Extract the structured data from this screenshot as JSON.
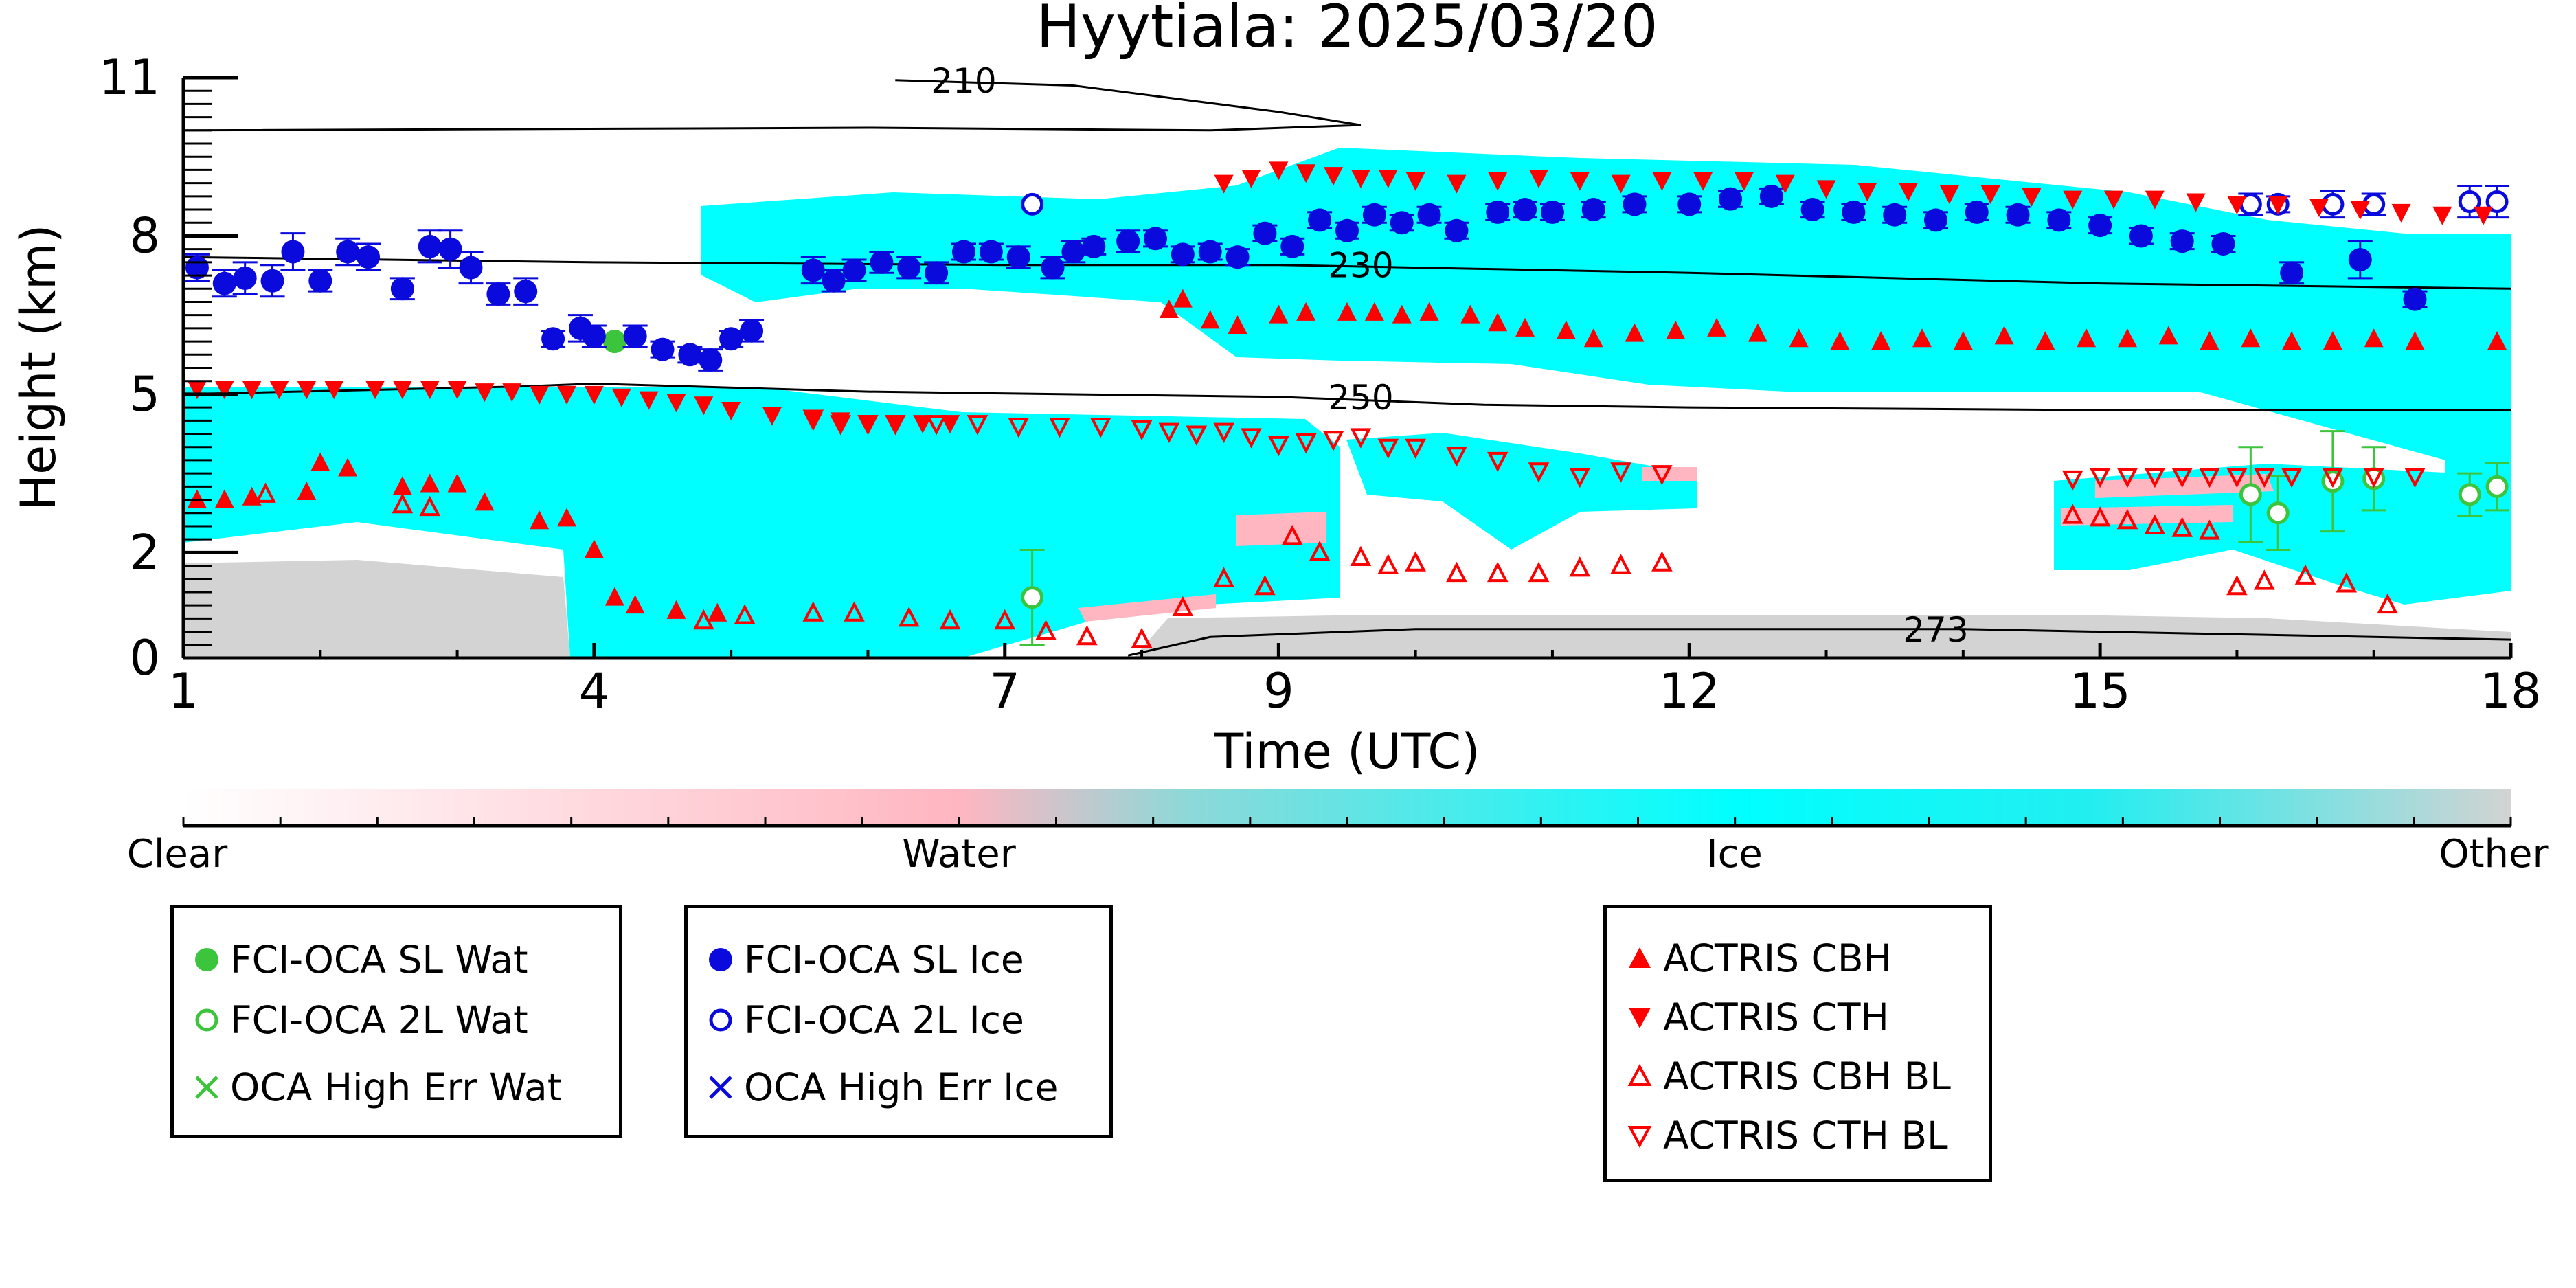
{
  "chart_data": {
    "type": "scatter",
    "title": "Hyytiala: 2025/03/20",
    "xlabel": "Time (UTC)",
    "ylabel": "Height (km)",
    "xlim": [
      1,
      18
    ],
    "ylim": [
      0,
      11
    ],
    "xticks": [
      "1",
      "4",
      "7",
      "9",
      "12",
      "15",
      "18"
    ],
    "xtick_values": [
      1,
      4,
      7,
      9,
      12,
      15,
      18
    ],
    "yticks": [
      "0",
      "2",
      "5",
      "8",
      "11"
    ],
    "ytick_values": [
      0,
      2,
      5,
      8,
      11
    ],
    "grid": false,
    "background_classification": {
      "colorbar_labels": [
        "Clear",
        "Water",
        "Ice",
        "Other"
      ],
      "colors": {
        "clear": "#ffffff",
        "water": "#ffb6c1",
        "ice": "#00ffff",
        "other": "#d3d3d3"
      }
    },
    "contours": [
      {
        "label": "210",
        "points": [
          [
            1.0,
            10.0
          ],
          [
            6.0,
            10.05
          ],
          [
            8.5,
            10.0
          ],
          [
            9.6,
            10.1
          ],
          [
            9.0,
            10.35
          ],
          [
            7.5,
            10.85
          ],
          [
            6.2,
            10.95
          ]
        ]
      },
      {
        "label": "230",
        "points": [
          [
            1.0,
            7.6
          ],
          [
            4.0,
            7.5
          ],
          [
            7.0,
            7.45
          ],
          [
            9.0,
            7.45
          ],
          [
            12.0,
            7.3
          ],
          [
            15.0,
            7.1
          ],
          [
            18.0,
            7.0
          ]
        ]
      },
      {
        "label": "250",
        "points": [
          [
            1.0,
            5.0
          ],
          [
            3.5,
            5.15
          ],
          [
            4.0,
            5.2
          ],
          [
            6.0,
            5.05
          ],
          [
            9.0,
            4.95
          ],
          [
            10.5,
            4.8
          ],
          [
            12.0,
            4.75
          ],
          [
            15.0,
            4.7
          ],
          [
            18.0,
            4.7
          ]
        ]
      },
      {
        "label": "273",
        "points": [
          [
            7.9,
            0.05
          ],
          [
            8.5,
            0.4
          ],
          [
            10.0,
            0.55
          ],
          [
            12.0,
            0.55
          ],
          [
            14.0,
            0.55
          ],
          [
            16.0,
            0.45
          ],
          [
            18.0,
            0.35
          ]
        ]
      }
    ],
    "series": [
      {
        "name": "FCI-OCA SL Wat",
        "color": "#3cc43c",
        "marker": "filled-circle",
        "x": [
          4.15
        ],
        "y": [
          6.0
        ]
      },
      {
        "name": "FCI-OCA 2L Wat",
        "color": "#3cc43c",
        "marker": "open-circle",
        "x": [
          7.2,
          16.1,
          16.3,
          16.7,
          17.0,
          17.7,
          17.9
        ],
        "y": [
          1.15,
          3.1,
          2.75,
          3.35,
          3.4,
          3.1,
          3.25
        ],
        "err": [
          0.9,
          0.9,
          0.7,
          0.95,
          0.6,
          0.4,
          0.45
        ]
      },
      {
        "name": "OCA High Err Wat",
        "color": "#3cc43c",
        "marker": "x",
        "x": [],
        "y": []
      },
      {
        "name": "FCI-OCA SL Ice",
        "color": "#0a0adc",
        "marker": "filled-circle",
        "x": [
          1.1,
          1.3,
          1.45,
          1.65,
          1.8,
          2.0,
          2.2,
          2.35,
          2.6,
          2.8,
          2.95,
          3.1,
          3.3,
          3.5,
          3.7,
          3.9,
          4.0,
          4.3,
          4.5,
          4.7,
          4.85,
          5.0,
          5.15,
          5.6,
          5.75,
          5.9,
          6.1,
          6.3,
          6.5,
          6.7,
          6.9,
          7.1,
          7.35,
          7.5,
          7.65,
          7.9,
          8.1,
          8.3,
          8.5,
          8.7,
          8.9,
          9.1,
          9.3,
          9.5,
          9.7,
          9.9,
          10.1,
          10.3,
          10.6,
          10.8,
          11.0,
          11.3,
          11.6,
          12.0,
          12.3,
          12.6,
          12.9,
          13.2,
          13.5,
          13.8,
          14.1,
          14.4,
          14.7,
          15.0,
          15.3,
          15.6,
          15.9,
          16.4,
          16.9,
          17.3
        ],
        "y": [
          7.4,
          7.1,
          7.2,
          7.15,
          7.7,
          7.15,
          7.7,
          7.6,
          7.0,
          7.8,
          7.75,
          7.4,
          6.9,
          6.95,
          6.05,
          6.25,
          6.1,
          6.1,
          5.85,
          5.75,
          5.65,
          6.05,
          6.2,
          7.35,
          7.15,
          7.35,
          7.5,
          7.4,
          7.3,
          7.7,
          7.7,
          7.6,
          7.4,
          7.7,
          7.8,
          7.9,
          7.95,
          7.65,
          7.7,
          7.6,
          8.05,
          7.8,
          8.3,
          8.1,
          8.4,
          8.25,
          8.4,
          8.1,
          8.45,
          8.5,
          8.45,
          8.5,
          8.6,
          8.6,
          8.7,
          8.75,
          8.5,
          8.45,
          8.4,
          8.3,
          8.45,
          8.4,
          8.3,
          8.2,
          8.0,
          7.9,
          7.85,
          7.3,
          7.55,
          6.8
        ],
        "err": [
          0.25,
          0.25,
          0.3,
          0.3,
          0.35,
          0.2,
          0.25,
          0.25,
          0.2,
          0.3,
          0.35,
          0.3,
          0.2,
          0.25,
          0.15,
          0.25,
          0.2,
          0.2,
          0.15,
          0.15,
          0.2,
          0.15,
          0.2,
          0.25,
          0.2,
          0.2,
          0.2,
          0.2,
          0.2,
          0.15,
          0.15,
          0.2,
          0.2,
          0.2,
          0.15,
          0.2,
          0.15,
          0.15,
          0.15,
          0.15,
          0.15,
          0.15,
          0.15,
          0.15,
          0.15,
          0.15,
          0.15,
          0.15,
          0.15,
          0.15,
          0.15,
          0.15,
          0.15,
          0.15,
          0.15,
          0.15,
          0.15,
          0.15,
          0.15,
          0.15,
          0.15,
          0.15,
          0.15,
          0.15,
          0.15,
          0.15,
          0.15,
          0.2,
          0.35,
          0.15
        ]
      },
      {
        "name": "FCI-OCA 2L Ice",
        "color": "#0a0adc",
        "marker": "open-circle",
        "x": [
          7.2,
          16.1,
          16.3,
          16.7,
          17.0,
          17.7,
          17.9
        ],
        "y": [
          8.6,
          8.6,
          8.6,
          8.6,
          8.6,
          8.65,
          8.65
        ],
        "err": [
          0,
          0.2,
          0.15,
          0.25,
          0.2,
          0.3,
          0.3
        ]
      },
      {
        "name": "OCA High Err Ice",
        "color": "#0a0adc",
        "marker": "x",
        "x": [],
        "y": []
      },
      {
        "name": "ACTRIS CBH",
        "color": "#ff0000",
        "marker": "triangle-up-filled",
        "x": [
          1.1,
          1.3,
          1.5,
          1.9,
          2.0,
          2.2,
          2.6,
          2.8,
          3.0,
          3.2,
          3.6,
          3.8,
          4.0,
          4.15,
          4.3,
          4.6,
          4.9,
          8.2,
          8.3,
          8.5,
          8.7,
          9.0,
          9.2,
          9.5,
          9.7,
          9.9,
          10.1,
          10.4,
          10.6,
          10.8,
          11.1,
          11.3,
          11.6,
          11.9,
          12.2,
          12.5,
          12.8,
          13.1,
          13.4,
          13.7,
          14.0,
          14.3,
          14.6,
          14.9,
          15.2,
          15.5,
          15.8,
          16.1,
          16.4,
          16.7,
          17.0,
          17.3,
          17.9
        ],
        "y": [
          3.0,
          3.0,
          3.05,
          3.15,
          3.7,
          3.6,
          3.25,
          3.3,
          3.3,
          2.95,
          2.6,
          2.65,
          2.05,
          1.15,
          1.0,
          0.9,
          0.85,
          6.6,
          6.8,
          6.4,
          6.3,
          6.5,
          6.55,
          6.55,
          6.55,
          6.5,
          6.55,
          6.5,
          6.35,
          6.25,
          6.2,
          6.05,
          6.15,
          6.2,
          6.25,
          6.15,
          6.05,
          6.0,
          6.0,
          6.05,
          6.0,
          6.1,
          6.0,
          6.05,
          6.05,
          6.1,
          6.0,
          6.05,
          6.0,
          6.0,
          6.05,
          6.0,
          6.0
        ]
      },
      {
        "name": "ACTRIS CTH",
        "color": "#ff0000",
        "marker": "triangle-down-filled",
        "x": [
          1.1,
          1.3,
          1.5,
          1.7,
          1.9,
          2.1,
          2.4,
          2.6,
          2.8,
          3.0,
          3.2,
          3.4,
          3.6,
          3.8,
          4.0,
          4.2,
          4.4,
          4.6,
          4.8,
          5.0,
          5.3,
          5.6,
          5.8,
          6.0,
          6.2,
          6.4,
          6.6,
          8.6,
          8.8,
          9.0,
          9.2,
          9.4,
          9.6,
          9.8,
          10.0,
          10.3,
          10.6,
          10.9,
          11.2,
          11.5,
          11.8,
          12.1,
          12.4,
          12.7,
          13.0,
          13.3,
          13.6,
          13.9,
          14.2,
          14.5,
          14.8,
          15.1,
          15.4,
          15.7,
          16.0,
          16.3,
          16.6,
          16.9,
          17.2,
          17.5,
          17.8
        ],
        "y": [
          5.1,
          5.1,
          5.1,
          5.1,
          5.1,
          5.1,
          5.1,
          5.1,
          5.1,
          5.1,
          5.05,
          5.05,
          5.0,
          5.0,
          5.0,
          4.95,
          4.9,
          4.85,
          4.8,
          4.7,
          4.6,
          4.5,
          4.5,
          4.45,
          4.45,
          4.45,
          4.45,
          9.0,
          9.1,
          9.25,
          9.2,
          9.15,
          9.1,
          9.1,
          9.05,
          9.0,
          9.05,
          9.1,
          9.05,
          9.0,
          9.05,
          9.05,
          9.05,
          9.0,
          8.9,
          8.85,
          8.85,
          8.8,
          8.8,
          8.75,
          8.7,
          8.7,
          8.7,
          8.65,
          8.6,
          8.6,
          8.55,
          8.5,
          8.45,
          8.4,
          8.4
        ]
      },
      {
        "name": "ACTRIS CBH BL",
        "color": "#ff0000",
        "marker": "triangle-up-open",
        "x": [
          1.6,
          2.6,
          2.8,
          4.8,
          5.1,
          5.6,
          5.9,
          6.3,
          6.6,
          7.0,
          7.3,
          7.6,
          8.0,
          8.3,
          8.6,
          8.9,
          9.1,
          9.3,
          9.6,
          9.8,
          10.0,
          10.3,
          10.6,
          10.9,
          11.2,
          11.5,
          11.8,
          14.8,
          15.0,
          15.2,
          15.4,
          15.6,
          15.8,
          16.0,
          16.2,
          16.5,
          16.8,
          17.1
        ],
        "y": [
          3.1,
          2.9,
          2.85,
          0.7,
          0.8,
          0.85,
          0.85,
          0.75,
          0.7,
          0.7,
          0.5,
          0.4,
          0.35,
          0.95,
          1.5,
          1.35,
          2.3,
          2.0,
          1.9,
          1.75,
          1.8,
          1.6,
          1.6,
          1.6,
          1.7,
          1.75,
          1.8,
          2.7,
          2.65,
          2.6,
          2.5,
          2.45,
          2.4,
          1.35,
          1.45,
          1.55,
          1.4,
          1.0
        ]
      },
      {
        "name": "ACTRIS CTH BL",
        "color": "#ff0000",
        "marker": "triangle-down-open",
        "x": [
          5.6,
          5.8,
          6.0,
          6.2,
          6.5,
          6.8,
          7.1,
          7.4,
          7.7,
          8.0,
          8.2,
          8.4,
          8.6,
          8.8,
          9.0,
          9.2,
          9.4,
          9.6,
          9.8,
          10.0,
          10.3,
          10.6,
          10.9,
          11.2,
          11.5,
          11.8,
          14.8,
          15.0,
          15.2,
          15.4,
          15.6,
          15.8,
          16.0,
          16.2,
          16.4,
          16.7,
          17.0,
          17.3
        ],
        "y": [
          4.55,
          4.45,
          4.45,
          4.45,
          4.45,
          4.45,
          4.4,
          4.4,
          4.4,
          4.35,
          4.3,
          4.25,
          4.3,
          4.2,
          4.05,
          4.1,
          4.15,
          4.2,
          4.0,
          4.0,
          3.85,
          3.75,
          3.55,
          3.45,
          3.55,
          3.5,
          3.4,
          3.45,
          3.45,
          3.45,
          3.45,
          3.45,
          3.45,
          3.45,
          3.45,
          3.45,
          3.45,
          3.45
        ]
      }
    ]
  },
  "legends": [
    {
      "items": [
        {
          "label": "FCI-OCA SL Wat",
          "marker": "filled-circle",
          "color": "#3cc43c"
        },
        {
          "label": "FCI-OCA 2L Wat",
          "marker": "open-circle",
          "color": "#3cc43c"
        },
        {
          "label": "OCA High Err Wat",
          "marker": "x",
          "color": "#3cc43c"
        }
      ]
    },
    {
      "items": [
        {
          "label": "FCI-OCA SL Ice",
          "marker": "filled-circle",
          "color": "#0a0adc"
        },
        {
          "label": "FCI-OCA 2L Ice",
          "marker": "open-circle",
          "color": "#0a0adc"
        },
        {
          "label": "OCA High Err Ice",
          "marker": "x",
          "color": "#0a0adc"
        }
      ]
    },
    {
      "items": [
        {
          "label": "ACTRIS CBH",
          "marker": "triangle-up-filled",
          "color": "#ff0000"
        },
        {
          "label": "ACTRIS CTH",
          "marker": "triangle-down-filled",
          "color": "#ff0000"
        },
        {
          "label": "ACTRIS CBH BL",
          "marker": "triangle-up-open",
          "color": "#ff0000"
        },
        {
          "label": "ACTRIS CTH BL",
          "marker": "triangle-down-open",
          "color": "#ff0000"
        }
      ]
    }
  ]
}
